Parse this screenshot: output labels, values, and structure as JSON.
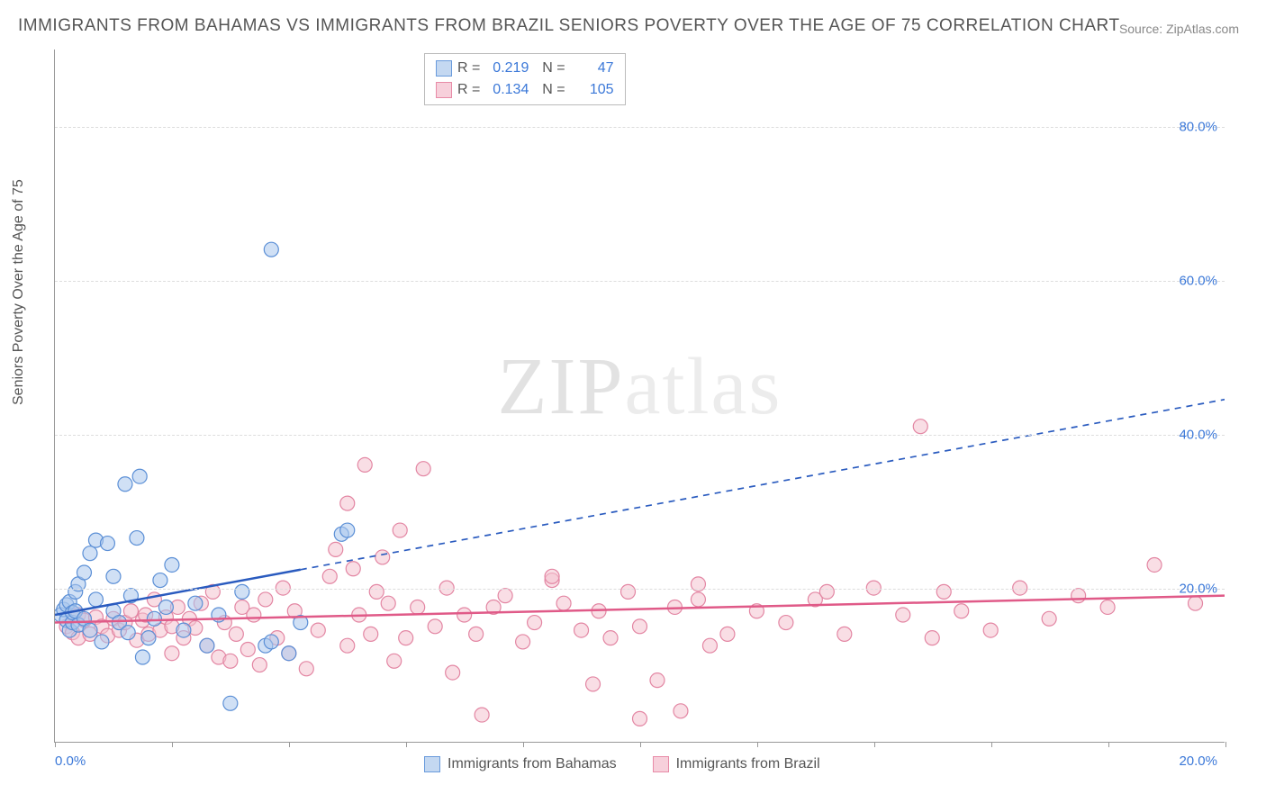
{
  "title": "IMMIGRANTS FROM BAHAMAS VS IMMIGRANTS FROM BRAZIL SENIORS POVERTY OVER THE AGE OF 75 CORRELATION CHART",
  "source": "Source: ZipAtlas.com",
  "y_axis_label": "Seniors Poverty Over the Age of 75",
  "watermark": {
    "bold": "ZIP",
    "light": "atlas"
  },
  "chart": {
    "type": "scatter",
    "xlim": [
      0,
      20
    ],
    "ylim": [
      0,
      90
    ],
    "x_ticks": [
      0,
      2,
      4,
      6,
      8,
      10,
      12,
      14,
      16,
      18,
      20
    ],
    "x_tick_labels_shown": {
      "0": "0.0%",
      "20": "20.0%"
    },
    "y_ticks": [
      20,
      40,
      60,
      80
    ],
    "y_tick_labels": [
      "20.0%",
      "40.0%",
      "60.0%",
      "80.0%"
    ],
    "background_color": "#ffffff",
    "grid_color": "#dddddd",
    "axis_color": "#999999",
    "marker_radius": 8,
    "marker_opacity": 0.55,
    "series": [
      {
        "name": "Immigrants from Bahamas",
        "color_fill": "#a9c7ec",
        "color_stroke": "#5b8fd6",
        "swatch_fill": "#c4d8f1",
        "swatch_border": "#6a9bdc",
        "R": "0.219",
        "N": "47",
        "trend": {
          "color": "#2a5bbf",
          "width": 2.5,
          "solid_to_x": 4.2,
          "y_at_0": 16.5,
          "y_at_20": 44.5
        },
        "points": [
          [
            0.1,
            16.5
          ],
          [
            0.15,
            17.2
          ],
          [
            0.2,
            15.8
          ],
          [
            0.2,
            17.8
          ],
          [
            0.25,
            18.2
          ],
          [
            0.25,
            14.5
          ],
          [
            0.3,
            15.5
          ],
          [
            0.3,
            16.8
          ],
          [
            0.35,
            19.5
          ],
          [
            0.35,
            17.0
          ],
          [
            0.4,
            15.2
          ],
          [
            0.4,
            20.5
          ],
          [
            0.5,
            22.0
          ],
          [
            0.5,
            16.0
          ],
          [
            0.6,
            14.5
          ],
          [
            0.6,
            24.5
          ],
          [
            0.7,
            26.2
          ],
          [
            0.7,
            18.5
          ],
          [
            0.8,
            13.0
          ],
          [
            0.9,
            25.8
          ],
          [
            1.0,
            17.0
          ],
          [
            1.0,
            21.5
          ],
          [
            1.1,
            15.5
          ],
          [
            1.2,
            33.5
          ],
          [
            1.25,
            14.2
          ],
          [
            1.3,
            19.0
          ],
          [
            1.4,
            26.5
          ],
          [
            1.45,
            34.5
          ],
          [
            1.5,
            11.0
          ],
          [
            1.6,
            13.5
          ],
          [
            1.7,
            16.0
          ],
          [
            1.8,
            21.0
          ],
          [
            1.9,
            17.5
          ],
          [
            2.0,
            23.0
          ],
          [
            2.2,
            14.5
          ],
          [
            2.4,
            18.0
          ],
          [
            2.6,
            12.5
          ],
          [
            2.8,
            16.5
          ],
          [
            3.0,
            5.0
          ],
          [
            3.2,
            19.5
          ],
          [
            3.6,
            12.5
          ],
          [
            3.7,
            13.0
          ],
          [
            3.7,
            64.0
          ],
          [
            4.0,
            11.5
          ],
          [
            4.2,
            15.5
          ],
          [
            4.9,
            27.0
          ],
          [
            5.0,
            27.5
          ]
        ]
      },
      {
        "name": "Immigrants from Brazil",
        "color_fill": "#f4c3d0",
        "color_stroke": "#e386a3",
        "swatch_fill": "#f7d0db",
        "swatch_border": "#e88ba7",
        "R": "0.134",
        "N": "105",
        "trend": {
          "color": "#e05a88",
          "width": 2.5,
          "solid_to_x": 20,
          "y_at_0": 15.5,
          "y_at_20": 19.0
        },
        "points": [
          [
            0.2,
            15.0
          ],
          [
            0.3,
            14.2
          ],
          [
            0.4,
            16.5
          ],
          [
            0.4,
            13.5
          ],
          [
            0.5,
            15.8
          ],
          [
            0.6,
            14.0
          ],
          [
            0.7,
            16.2
          ],
          [
            0.8,
            15.0
          ],
          [
            0.9,
            13.8
          ],
          [
            1.0,
            16.0
          ],
          [
            1.1,
            14.5
          ],
          [
            1.2,
            15.5
          ],
          [
            1.3,
            17.0
          ],
          [
            1.4,
            13.2
          ],
          [
            1.5,
            15.8
          ],
          [
            1.55,
            16.5
          ],
          [
            1.6,
            14.0
          ],
          [
            1.7,
            18.5
          ],
          [
            1.8,
            14.5
          ],
          [
            1.9,
            16.2
          ],
          [
            2.0,
            15.0
          ],
          [
            2.0,
            11.5
          ],
          [
            2.1,
            17.5
          ],
          [
            2.2,
            13.5
          ],
          [
            2.3,
            16.0
          ],
          [
            2.4,
            14.8
          ],
          [
            2.5,
            18.0
          ],
          [
            2.6,
            12.5
          ],
          [
            2.7,
            19.5
          ],
          [
            2.8,
            11.0
          ],
          [
            2.9,
            15.5
          ],
          [
            3.0,
            10.5
          ],
          [
            3.1,
            14.0
          ],
          [
            3.2,
            17.5
          ],
          [
            3.3,
            12.0
          ],
          [
            3.4,
            16.5
          ],
          [
            3.5,
            10.0
          ],
          [
            3.6,
            18.5
          ],
          [
            3.8,
            13.5
          ],
          [
            3.9,
            20.0
          ],
          [
            4.0,
            11.5
          ],
          [
            4.1,
            17.0
          ],
          [
            4.3,
            9.5
          ],
          [
            4.5,
            14.5
          ],
          [
            4.7,
            21.5
          ],
          [
            4.8,
            25.0
          ],
          [
            5.0,
            12.5
          ],
          [
            5.0,
            31.0
          ],
          [
            5.1,
            22.5
          ],
          [
            5.2,
            16.5
          ],
          [
            5.3,
            36.0
          ],
          [
            5.4,
            14.0
          ],
          [
            5.5,
            19.5
          ],
          [
            5.6,
            24.0
          ],
          [
            5.7,
            18.0
          ],
          [
            5.8,
            10.5
          ],
          [
            5.9,
            27.5
          ],
          [
            6.0,
            13.5
          ],
          [
            6.2,
            17.5
          ],
          [
            6.3,
            35.5
          ],
          [
            6.5,
            15.0
          ],
          [
            6.7,
            20.0
          ],
          [
            6.8,
            9.0
          ],
          [
            7.0,
            16.5
          ],
          [
            7.2,
            14.0
          ],
          [
            7.3,
            3.5
          ],
          [
            7.5,
            17.5
          ],
          [
            7.7,
            19.0
          ],
          [
            8.0,
            13.0
          ],
          [
            8.2,
            15.5
          ],
          [
            8.5,
            21.0
          ],
          [
            8.5,
            21.5
          ],
          [
            8.7,
            18.0
          ],
          [
            9.0,
            14.5
          ],
          [
            9.2,
            7.5
          ],
          [
            9.3,
            17.0
          ],
          [
            9.5,
            13.5
          ],
          [
            9.8,
            19.5
          ],
          [
            10.0,
            15.0
          ],
          [
            10.0,
            3.0
          ],
          [
            10.3,
            8.0
          ],
          [
            10.6,
            17.5
          ],
          [
            10.7,
            4.0
          ],
          [
            11.0,
            20.5
          ],
          [
            11.0,
            18.5
          ],
          [
            11.2,
            12.5
          ],
          [
            11.5,
            14.0
          ],
          [
            12.0,
            17.0
          ],
          [
            12.5,
            15.5
          ],
          [
            13.0,
            18.5
          ],
          [
            13.2,
            19.5
          ],
          [
            13.5,
            14.0
          ],
          [
            14.0,
            20.0
          ],
          [
            14.5,
            16.5
          ],
          [
            14.8,
            41.0
          ],
          [
            15.0,
            13.5
          ],
          [
            15.2,
            19.5
          ],
          [
            15.5,
            17.0
          ],
          [
            16.0,
            14.5
          ],
          [
            16.5,
            20.0
          ],
          [
            17.0,
            16.0
          ],
          [
            17.5,
            19.0
          ],
          [
            18.0,
            17.5
          ],
          [
            18.8,
            23.0
          ],
          [
            19.5,
            18.0
          ]
        ]
      }
    ]
  },
  "legend_labels": {
    "series1": "Immigrants from Bahamas",
    "series2": "Immigrants from Brazil"
  }
}
